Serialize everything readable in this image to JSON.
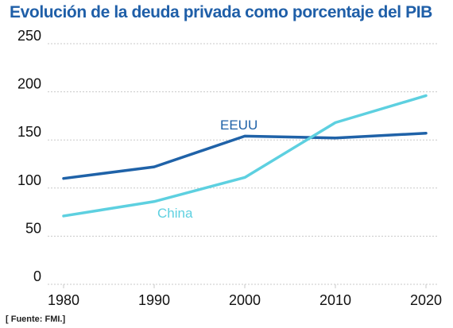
{
  "title": "Evolución de la deuda privada como porcentaje del PIB",
  "source": "[ Fuente: FMI.]",
  "colors": {
    "title": "#1f5fa8",
    "EEUU": "#1f62a8",
    "China": "#5dd0e0",
    "grid": "#c8c8c8"
  },
  "chart_data": {
    "type": "line",
    "title": "Evolución de la deuda privada como porcentaje del PIB",
    "xlabel": "",
    "ylabel": "",
    "x": [
      1980,
      1990,
      2000,
      2010,
      2020
    ],
    "xticks": [
      "1980",
      "1990",
      "2000",
      "2010",
      "2020"
    ],
    "yticks": [
      "0",
      "50",
      "100",
      "150",
      "200",
      "250"
    ],
    "ylim": [
      0,
      250
    ],
    "grid": "horizontal dashed",
    "legend": "inline labels",
    "series": [
      {
        "name": "EEUU",
        "values": [
          110,
          122,
          154,
          152,
          157
        ]
      },
      {
        "name": "China",
        "values": [
          71,
          86,
          111,
          168,
          196
        ]
      }
    ]
  }
}
